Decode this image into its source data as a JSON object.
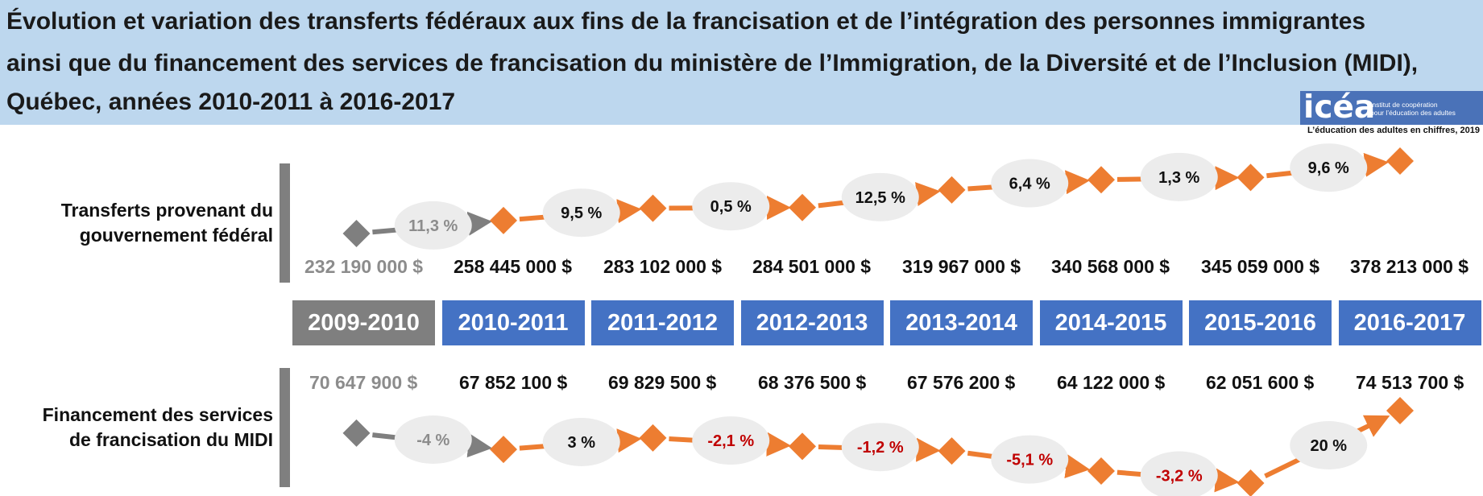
{
  "title": {
    "line1": "Évolution et variation des transferts fédéraux aux fins de la francisation et de l’intégration des personnes immigrantes",
    "line2": "ainsi que du financement des services de francisation du ministère de l’Immigration, de la Diversité et de l’Inclusion (MIDI),",
    "line3": "Québec, années 2010-2011 à 2016-2017"
  },
  "logo": {
    "mark": "icéa",
    "sub_line1": "Institut de coopération",
    "sub_line2": "pour l’éducation des adultes",
    "caption": "L’éducation des adultes en chiffres, 2019"
  },
  "colors": {
    "header_bg": "#bdd7ee",
    "year_box": "#4472c4",
    "baseline_gray": "#7f7f7f",
    "marker_orange": "#ed7d31",
    "bubble": "#ececec",
    "negative_red": "#c00000"
  },
  "chart_data": {
    "type": "line",
    "categories": [
      "2009-2010",
      "2010-2011",
      "2011-2012",
      "2012-2013",
      "2013-2014",
      "2014-2015",
      "2015-2016",
      "2016-2017"
    ],
    "series": [
      {
        "name": "Transferts provenant du\ngouvernement fédéral",
        "amounts": [
          "232 190 000 $",
          "258 445 000  $",
          "283 102 000  $",
          "284 501 000  $",
          "319 967 000  $",
          "340 568 000  $",
          "345 059 000  $",
          "378 213 000  $"
        ],
        "values": [
          232190000,
          258445000,
          283102000,
          284501000,
          319967000,
          340568000,
          345059000,
          378213000
        ],
        "variations": [
          "11,3 %",
          "9,5 %",
          "0,5 %",
          "12,5 %",
          "6,4 %",
          "1,3 %",
          "9,6 %"
        ]
      },
      {
        "name": "Financement des services\nde francisation du MIDI",
        "amounts": [
          "70 647 900  $",
          "67 852 100  $",
          "69 829 500 $",
          "68 376 500  $",
          "67 576 200  $",
          "64 122 000 $",
          "62 051 600 $",
          "74 513 700  $"
        ],
        "values": [
          70647900,
          67852100,
          69829500,
          68376500,
          67576200,
          64122000,
          62051600,
          74513700
        ],
        "variations": [
          "-4 %",
          "3 %",
          "-2,1 %",
          "-1,2 %",
          "-5,1 %",
          "-3,2 %",
          "20 %"
        ]
      }
    ]
  }
}
